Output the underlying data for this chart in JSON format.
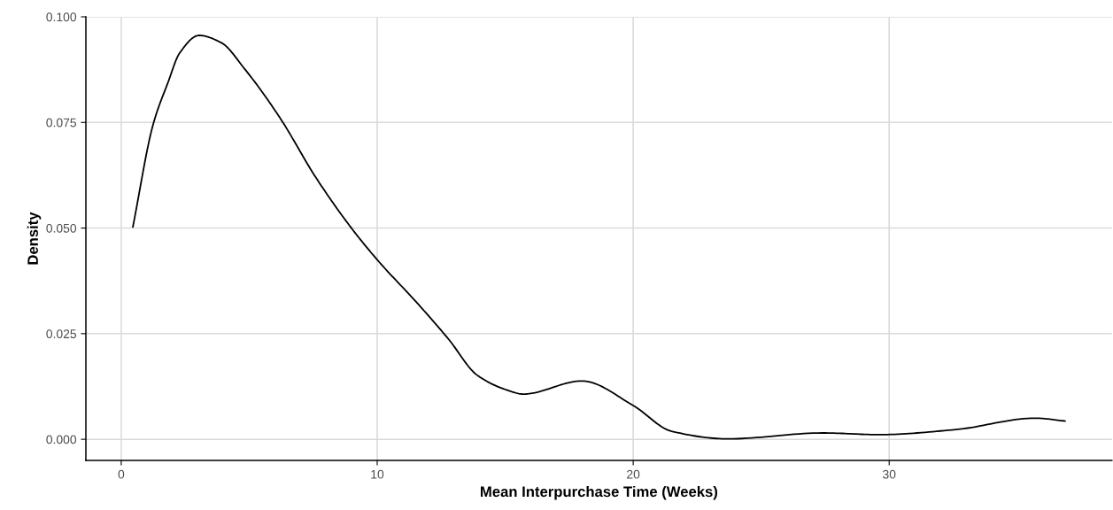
{
  "chart_data": {
    "type": "line",
    "xlabel": "Mean Interpurchase Time (Weeks)",
    "ylabel": "Density",
    "x": [
      0.45,
      1.25,
      1.83,
      2.28,
      3.04,
      3.9,
      4.83,
      6.2,
      7.6,
      8.98,
      10,
      11.6,
      12.8,
      13.9,
      15.05,
      15.7,
      18.0,
      20,
      21.5,
      23.7,
      27.4,
      29.6,
      32.6,
      35.7,
      36.9
    ],
    "series": [
      {
        "color": "#000000",
        "values": [
          0.0501,
          0.0746,
          0.0845,
          0.0914,
          0.0956,
          0.0939,
          0.0876,
          0.0761,
          0.062,
          0.0501,
          0.0425,
          0.032,
          0.0236,
          0.0152,
          0.0117,
          0.0107,
          0.0138,
          0.008,
          0.0019,
          0.0001,
          0.0015,
          0.0011,
          0.0023,
          0.005,
          0.0043
        ]
      }
    ],
    "xlim": [
      -1.38,
      38.7
    ],
    "ylim": [
      -0.005,
      0.1
    ],
    "xticks": [
      0,
      10,
      20,
      30
    ],
    "yticks": [
      {
        "value": 0,
        "label": "0.000"
      },
      {
        "value": 0.025,
        "label": "0.025"
      },
      {
        "value": 0.05,
        "label": "0.050"
      },
      {
        "value": 0.075,
        "label": "0.075"
      },
      {
        "value": 0.1,
        "label": "0.100"
      }
    ],
    "grid": true
  }
}
